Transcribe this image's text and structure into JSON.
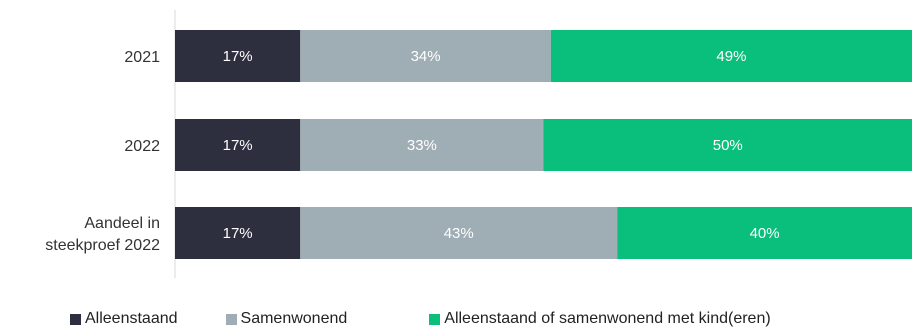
{
  "chart_data": {
    "type": "bar",
    "orientation": "horizontal",
    "stacked": true,
    "categories": [
      "2021",
      "2022",
      "Aandeel in steekproef 2022"
    ],
    "series": [
      {
        "name": "Alleenstaand",
        "color": "#2d2f3e",
        "values": [
          17,
          17,
          17
        ],
        "labels": [
          "17%",
          "17%",
          "17%"
        ]
      },
      {
        "name": "Samenwonend",
        "color": "#9fadb4",
        "values": [
          34,
          33,
          43
        ],
        "labels": [
          "34%",
          "33%",
          "43%"
        ]
      },
      {
        "name": "Alleenstaand of samenwonend met kind(eren)",
        "color": "#0abf7c",
        "values": [
          49,
          50,
          40
        ],
        "labels": [
          "49%",
          "50%",
          "40%"
        ]
      }
    ],
    "xlim": [
      0,
      100
    ],
    "legend_position": "bottom",
    "grid": false
  }
}
